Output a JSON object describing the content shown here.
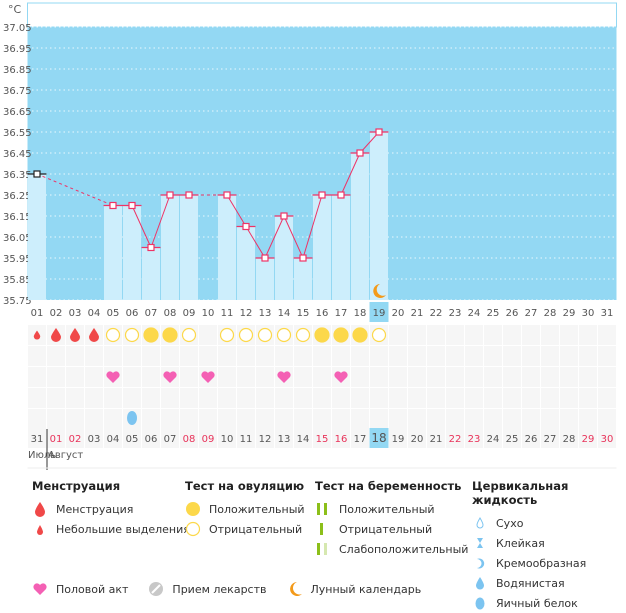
{
  "chart_data": {
    "type": "line",
    "unit_label": "°C",
    "ylim": [
      35.75,
      37.05
    ],
    "y_ticks": [
      "37.05",
      "36.95",
      "36.85",
      "36.75",
      "36.65",
      "36.55",
      "36.45",
      "36.35",
      "36.25",
      "36.15",
      "36.05",
      "35.95",
      "35.85",
      "35.75"
    ],
    "cycle_days": [
      "01",
      "02",
      "03",
      "04",
      "05",
      "06",
      "07",
      "08",
      "09",
      "10",
      "11",
      "12",
      "13",
      "14",
      "15",
      "16",
      "17",
      "18",
      "19",
      "20",
      "21",
      "22",
      "23",
      "24",
      "25",
      "26",
      "27",
      "28",
      "29",
      "30",
      "31"
    ],
    "temperatures": [
      36.35,
      null,
      null,
      null,
      36.2,
      36.2,
      36.0,
      36.25,
      36.25,
      null,
      36.25,
      36.1,
      35.95,
      36.15,
      35.95,
      36.25,
      36.25,
      36.45,
      36.55
    ],
    "current_day": 19,
    "moon_day": 19,
    "dates": [
      "31",
      "01",
      "02",
      "03",
      "04",
      "05",
      "06",
      "07",
      "08",
      "09",
      "10",
      "11",
      "12",
      "13",
      "14",
      "15",
      "16",
      "17",
      "18",
      "19",
      "20",
      "21",
      "22",
      "23",
      "24",
      "25",
      "26",
      "27",
      "28",
      "29",
      "30"
    ],
    "weekend_dates": [
      "01",
      "02",
      "08",
      "09",
      "15",
      "16",
      "22",
      "23",
      "29",
      "30"
    ],
    "months": [
      "Июль",
      "Август"
    ],
    "menstruation": {
      "1": "light",
      "2": "heavy",
      "3": "heavy",
      "4": "heavy"
    },
    "ovulation_test": {
      "5": "neg",
      "6": "neg",
      "7": "pos",
      "8": "pos",
      "9": "neg",
      "11": "neg",
      "12": "neg",
      "13": "neg",
      "14": "neg",
      "15": "neg",
      "16": "pos",
      "17": "pos",
      "18": "pos",
      "19": "neg"
    },
    "intercourse_days": [
      5,
      8,
      10,
      14,
      17
    ],
    "cervical_fluid": {
      "6": "egg-white"
    },
    "grid": true
  },
  "colors": {
    "background": "#93d8f3",
    "bar": "#cdeefc",
    "line": "#ee3366",
    "menstruation": "#f04848",
    "ovulation": "#fcd84a",
    "heart": "#f460b4",
    "fluid": "#7cc4f0",
    "moon": "#f39a1a",
    "weekend": "#e8335a"
  },
  "legend": {
    "menstruation": {
      "title": "Менструация",
      "items": [
        "Менструация",
        "Небольшие выделения"
      ]
    },
    "ovulation": {
      "title": "Тест на овуляцию",
      "items": [
        "Положительный",
        "Отрицательный"
      ]
    },
    "pregnancy": {
      "title": "Тест на беременность",
      "items": [
        "Положительный",
        "Отрицательный",
        "Слабоположительный"
      ]
    },
    "cervical": {
      "title": "Цервикальная жидкость",
      "items": [
        "Сухо",
        "Клейкая",
        "Кремообразная",
        "Водянистая",
        "Яичный белок"
      ]
    },
    "other": [
      "Половой акт",
      "Прием лекарств",
      "Лунный календарь"
    ]
  }
}
